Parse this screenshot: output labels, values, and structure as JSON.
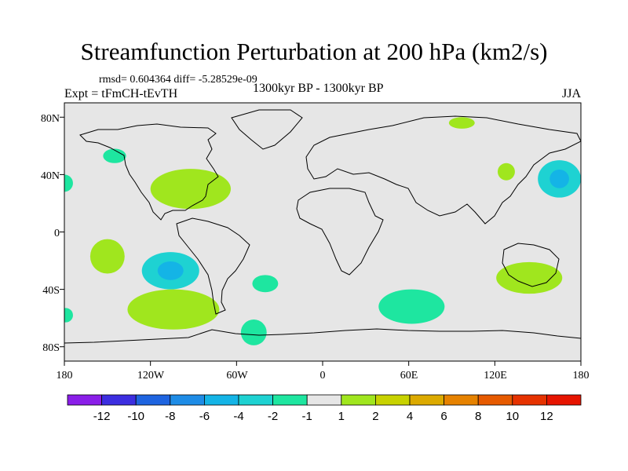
{
  "title": "Streamfunction Perturbation at 200 hPa (km2/s)",
  "stats": "rmsd= 0.604364 diff= -5.28529e-09",
  "experiment": "Expt = tFmCH-tEvTH",
  "period": "1300kyr BP - 1300kyr BP",
  "season": "JJA",
  "axes": {
    "lat_ticks": [
      "80N",
      "40N",
      "0",
      "40S",
      "80S"
    ],
    "lon_ticks": [
      "180",
      "120W",
      "60W",
      "0",
      "60E",
      "120E",
      "180"
    ]
  },
  "colorbar": {
    "labels": [
      "-12",
      "-10",
      "-8",
      "-6",
      "-4",
      "-2",
      "-1",
      "1",
      "2",
      "4",
      "6",
      "8",
      "10",
      "12"
    ],
    "colors": [
      "#8a1ee8",
      "#3c2ee0",
      "#1e64e0",
      "#1e8ce6",
      "#14b4e6",
      "#1ed2d2",
      "#1ee6a0",
      "#e6e6e6",
      "#a0e61e",
      "#c8d200",
      "#dcaa00",
      "#e68200",
      "#e65a00",
      "#e63200",
      "#e61400"
    ]
  },
  "colors": {
    "map_background": "#e6e6e6",
    "positive_light": "#a0e61e",
    "negative_light": "#1ee6a0",
    "negative_mid": "#1ed2d2"
  },
  "chart_data": {
    "type": "heatmap",
    "title": "Streamfunction Perturbation at 200 hPa (km2/s)",
    "xlim": [
      -180,
      180
    ],
    "ylim": [
      -90,
      90
    ],
    "anomalies": [
      {
        "name": "n-atlantic-pos",
        "lon": -92,
        "lat": 30,
        "rlon": 28,
        "rlat": 14,
        "level": "1 to 2"
      },
      {
        "name": "n-pacific-neg",
        "lon": -145,
        "lat": 53,
        "rlon": 8,
        "rlat": 5,
        "level": "-2 to -1"
      },
      {
        "name": "dateline-neg",
        "lon": -180,
        "lat": 34,
        "rlon": 6,
        "rlat": 6,
        "level": "-2 to -1"
      },
      {
        "name": "siberia-pos",
        "lon": 97,
        "lat": 76,
        "rlon": 9,
        "rlat": 4,
        "level": "1 to 2"
      },
      {
        "name": "japan-pos",
        "lon": 128,
        "lat": 42,
        "rlon": 6,
        "rlat": 6,
        "level": "1 to 2"
      },
      {
        "name": "nw-pacific-neg",
        "lon": 165,
        "lat": 37,
        "rlon": 15,
        "rlat": 13,
        "level": "-4 to -2"
      },
      {
        "name": "s-pacific-pos",
        "lon": -150,
        "lat": -17,
        "rlon": 12,
        "rlat": 12,
        "level": "1 to 2"
      },
      {
        "name": "se-pacific-neg",
        "lon": -106,
        "lat": -27,
        "rlon": 20,
        "rlat": 13,
        "level": "-4 to -2"
      },
      {
        "name": "s-atlantic-neg",
        "lon": -40,
        "lat": -36,
        "rlon": 9,
        "rlat": 6,
        "level": "-2 to -1"
      },
      {
        "name": "s-pacific-southern-pos",
        "lon": -104,
        "lat": -54,
        "rlon": 32,
        "rlat": 14,
        "level": "1 to 2"
      },
      {
        "name": "dateline-south-neg",
        "lon": -179,
        "lat": -58,
        "rlon": 5,
        "rlat": 5,
        "level": "-2 to -1"
      },
      {
        "name": "antarctic-neg",
        "lon": -48,
        "lat": -70,
        "rlon": 9,
        "rlat": 9,
        "level": "-2 to -1"
      },
      {
        "name": "indian-ocean-neg",
        "lon": 62,
        "lat": -52,
        "rlon": 23,
        "rlat": 12,
        "level": "-2 to -1"
      },
      {
        "name": "australia-pos",
        "lon": 144,
        "lat": -32,
        "rlon": 23,
        "rlat": 11,
        "level": "1 to 2"
      }
    ]
  }
}
